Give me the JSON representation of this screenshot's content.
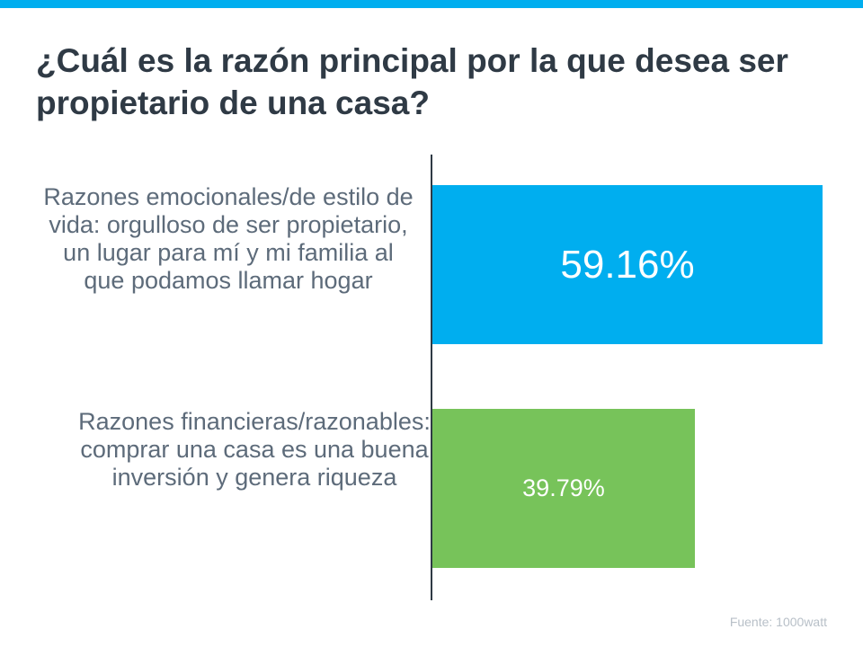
{
  "title": "¿Cuál es la razón principal por la que desea ser propietario de una casa?",
  "source": "Fuente:  1000watt",
  "colors": {
    "accent": "#00aeef",
    "bar0": "#00aeef",
    "bar1": "#77c35a"
  },
  "chart_data": {
    "type": "bar",
    "orientation": "horizontal",
    "title": "¿Cuál es la razón principal por la que desea ser propietario de una casa?",
    "categories": [
      "Razones emocionales/de estilo de vida: orgulloso de ser propietario, un lugar para mí y mi familia al que podamos llamar hogar",
      "Razones financieras/razonables: comprar una casa es una buena inversión y genera riqueza"
    ],
    "values": [
      59.16,
      39.79
    ],
    "labels": [
      "59.16%",
      "39.79%"
    ],
    "xlim": [
      0,
      65
    ],
    "grid": false
  }
}
